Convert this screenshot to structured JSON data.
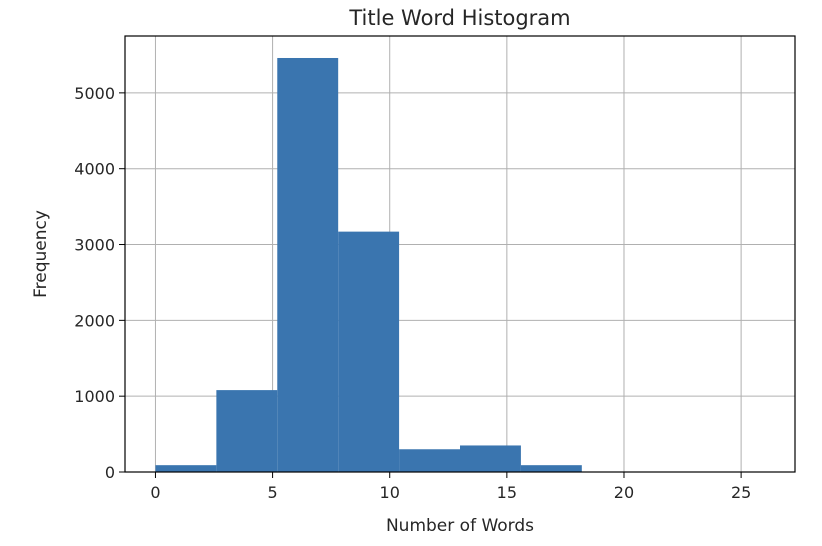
{
  "chart_data": {
    "type": "bar",
    "title": "Title Word Histogram",
    "xlabel": "Number of Words",
    "ylabel": "Frequency",
    "xlim": [
      -1.3,
      27.3
    ],
    "ylim": [
      0,
      5750
    ],
    "xticks": [
      0,
      5,
      10,
      15,
      20,
      25
    ],
    "yticks": [
      0,
      1000,
      2000,
      3000,
      4000,
      5000
    ],
    "grid": true,
    "bin_edges": [
      0,
      2.6,
      5.2,
      7.8,
      10.4,
      13.0,
      15.6,
      18.2,
      20.8,
      23.4,
      26.0
    ],
    "values": [
      90,
      1080,
      5460,
      3170,
      300,
      350,
      90,
      0,
      0,
      5
    ],
    "bar_color": "#3a75af"
  }
}
